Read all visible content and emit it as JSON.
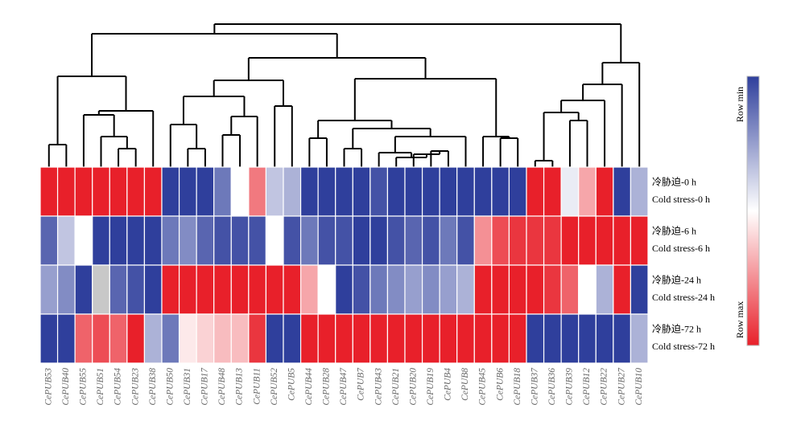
{
  "chart_data": {
    "type": "heatmap",
    "columns": [
      "CePUB53",
      "CePUB40",
      "CePUB55",
      "CePUB51",
      "CePUB54",
      "CePUB23",
      "CePUB38",
      "CePUB50",
      "CePUB31",
      "CePUB17",
      "CePUB48",
      "CePUB13",
      "CePUB11",
      "CePUB52",
      "CePUB5",
      "CePUB44",
      "CePUB28",
      "CePUB47",
      "CePUB7",
      "CePUB43",
      "CePUB21",
      "CePUB20",
      "CePUB19",
      "CePUB4",
      "CePUB8",
      "CePUB45",
      "CePUB6",
      "CePUB18",
      "CePUB37",
      "CePUB36",
      "CePUB39",
      "CePUB12",
      "CePUB22",
      "CePUB27",
      "CePUB10"
    ],
    "rows": [
      "冷胁迫-0 h",
      "冷胁迫-6 h",
      "冷胁迫-24 h",
      "冷胁迫-72 h"
    ],
    "rows_en": [
      "Cold stress-0 h",
      "Cold stress-6 h",
      "Cold stress-24 h",
      "Cold stress-72 h"
    ],
    "values": [
      [
        1,
        1,
        1,
        1,
        1,
        1,
        1,
        0,
        0,
        0,
        0.15,
        0.5,
        0.8,
        0.35,
        0.3,
        0,
        0,
        0,
        0,
        0.05,
        0,
        0,
        0,
        0,
        0,
        0,
        0,
        0,
        1,
        1,
        0.45,
        0.7,
        1,
        0,
        0.3
      ],
      [
        0.1,
        0.35,
        0.5,
        0,
        0,
        0,
        0,
        0.15,
        0.2,
        0.1,
        0.05,
        0.05,
        0.05,
        0.5,
        0.05,
        0.15,
        0.05,
        0.05,
        0,
        0,
        0.05,
        0.1,
        0.05,
        0.15,
        0.05,
        0.75,
        0.9,
        0.95,
        0.95,
        0.95,
        1,
        1,
        1,
        1,
        1
      ],
      [
        0.25,
        0.2,
        0,
        null,
        0.1,
        0.05,
        0,
        1,
        1,
        1,
        1,
        1,
        1,
        1,
        1,
        0.7,
        0.5,
        0,
        0.05,
        0.15,
        0.2,
        0.25,
        0.2,
        0.25,
        0.3,
        1,
        1,
        1,
        1,
        0.95,
        0.85,
        0.5,
        0.3,
        1,
        0
      ],
      [
        0,
        0,
        0.85,
        0.9,
        0.85,
        1,
        0.3,
        0.15,
        0.55,
        0.6,
        0.65,
        0.65,
        0.95,
        0,
        0,
        1,
        1,
        1,
        1,
        1,
        1,
        1,
        1,
        1,
        1,
        1,
        1,
        1,
        0,
        0,
        0,
        0,
        0,
        0,
        0.3
      ]
    ],
    "zlim": [
      0,
      1
    ],
    "low_color": "#2f3f9c",
    "mid_color": "#ffffff",
    "high_color": "#e8202a",
    "missing_color": "#c8c8c8",
    "colorbar_labels": [
      "Row min",
      "Row max"
    ]
  }
}
